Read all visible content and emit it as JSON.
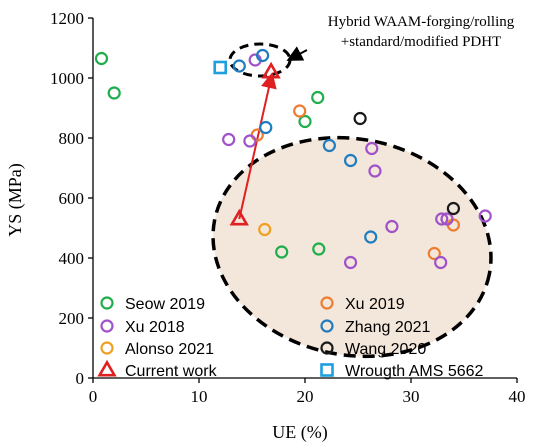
{
  "chart_data": {
    "type": "scatter",
    "xlabel": "UE (%)",
    "ylabel": "YS (MPa)",
    "xlim": [
      0,
      40
    ],
    "ylim": [
      0,
      1200
    ],
    "xticks": [
      0,
      10,
      20,
      30,
      40
    ],
    "yticks": [
      0,
      200,
      400,
      600,
      800,
      1000,
      1200
    ],
    "grid": false,
    "legend_position": "bottom-left",
    "annotation": {
      "line1": "Hybrid WAAM-forging/rolling",
      "line2": "+standard/modified PDHT"
    },
    "series": [
      {
        "name": "Seow 2019",
        "marker": "circle",
        "color": "#1FAE4B",
        "points": [
          [
            0.8,
            1065
          ],
          [
            2,
            950
          ],
          [
            21.2,
            935
          ],
          [
            20,
            855
          ],
          [
            17.8,
            420
          ],
          [
            21.3,
            430
          ]
        ]
      },
      {
        "name": "Xu 2019",
        "marker": "circle",
        "color": "#ED7D31",
        "points": [
          [
            19.5,
            890
          ],
          [
            15.5,
            810
          ],
          [
            32.2,
            415
          ],
          [
            34,
            510
          ]
        ]
      },
      {
        "name": "Xu 2018",
        "marker": "circle",
        "color": "#A052C8",
        "points": [
          [
            15.3,
            1060
          ],
          [
            12.8,
            795
          ],
          [
            14.8,
            790
          ],
          [
            26.3,
            765
          ],
          [
            26.6,
            690
          ],
          [
            28.2,
            505
          ],
          [
            24.3,
            385
          ],
          [
            32.9,
            530
          ],
          [
            33.4,
            530
          ],
          [
            32.8,
            385
          ],
          [
            37,
            540
          ]
        ]
      },
      {
        "name": "Zhang 2021",
        "marker": "circle",
        "color": "#1F7CC0",
        "points": [
          [
            13.8,
            1040
          ],
          [
            16,
            1075
          ],
          [
            16.3,
            835
          ],
          [
            22.3,
            775
          ],
          [
            24.3,
            725
          ],
          [
            26.2,
            470
          ]
        ]
      },
      {
        "name": "Alonso 2021",
        "marker": "circle",
        "color": "#F0A020",
        "points": [
          [
            16.2,
            495
          ]
        ]
      },
      {
        "name": "Wang 2020",
        "marker": "circle",
        "color": "#1A1A1A",
        "points": [
          [
            25.2,
            865
          ],
          [
            34,
            565
          ]
        ]
      },
      {
        "name": "Current work",
        "marker": "triangle",
        "color": "#E02020",
        "points": [
          [
            13.8,
            530
          ],
          [
            16.8,
            1020
          ]
        ]
      },
      {
        "name": "Wrougth AMS 5662",
        "marker": "square",
        "color": "#1EA0E0",
        "points": [
          [
            12,
            1035
          ]
        ]
      }
    ],
    "legend": [
      {
        "label": "Seow 2019",
        "series": 0
      },
      {
        "label": "Xu 2019",
        "series": 1
      },
      {
        "label": "Xu 2018",
        "series": 2
      },
      {
        "label": "Zhang 2021",
        "series": 3
      },
      {
        "label": "Alonso 2021",
        "series": 4
      },
      {
        "label": "Wang 2020",
        "series": 5
      },
      {
        "label": "Current work",
        "series": 6
      },
      {
        "label": "Wrougth AMS 5662",
        "series": 7
      }
    ],
    "arrow": {
      "from": [
        13.8,
        530
      ],
      "to": [
        16.8,
        1020
      ],
      "color": "#E02020"
    }
  }
}
